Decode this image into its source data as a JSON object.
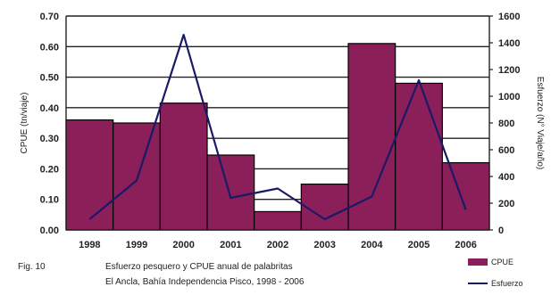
{
  "chart_data": {
    "type": "bar",
    "categories": [
      "1998",
      "1999",
      "2000",
      "2001",
      "2002",
      "2003",
      "2004",
      "2005",
      "2006"
    ],
    "series": [
      {
        "name": "CPUE",
        "type": "bar",
        "axis": "left",
        "color": "#8b1f5a",
        "values": [
          0.36,
          0.35,
          0.415,
          0.245,
          0.06,
          0.15,
          0.61,
          0.48,
          0.22
        ]
      },
      {
        "name": "Esfuerzo",
        "type": "line",
        "axis": "right",
        "color": "#1a1a66",
        "values": [
          80,
          370,
          1460,
          240,
          310,
          80,
          250,
          1120,
          150
        ]
      }
    ],
    "ylabel": "CPUE (tn/viaje)",
    "y2label": "Esfuerzo (N° Viaje/año)",
    "ylim": [
      0,
      0.7
    ],
    "y2lim": [
      0,
      1600
    ],
    "yticks": [
      "0.00",
      "0.10",
      "0.20",
      "0.30",
      "0.40",
      "0.50",
      "0.60",
      "0.70"
    ],
    "y2ticks": [
      "0",
      "200",
      "400",
      "600",
      "800",
      "1000",
      "1200",
      "1400",
      "1600"
    ],
    "grid": true,
    "legend": "bottom-right"
  },
  "caption": {
    "fig_label": "Fig. 10",
    "line1": "Esfuerzo pesquero y CPUE anual de palabritas",
    "line2": "El Ancla, Bahía Independencia Pisco, 1998 - 2006"
  },
  "legend": {
    "bar_label": "CPUE",
    "line_label": "Esfuerzo"
  }
}
